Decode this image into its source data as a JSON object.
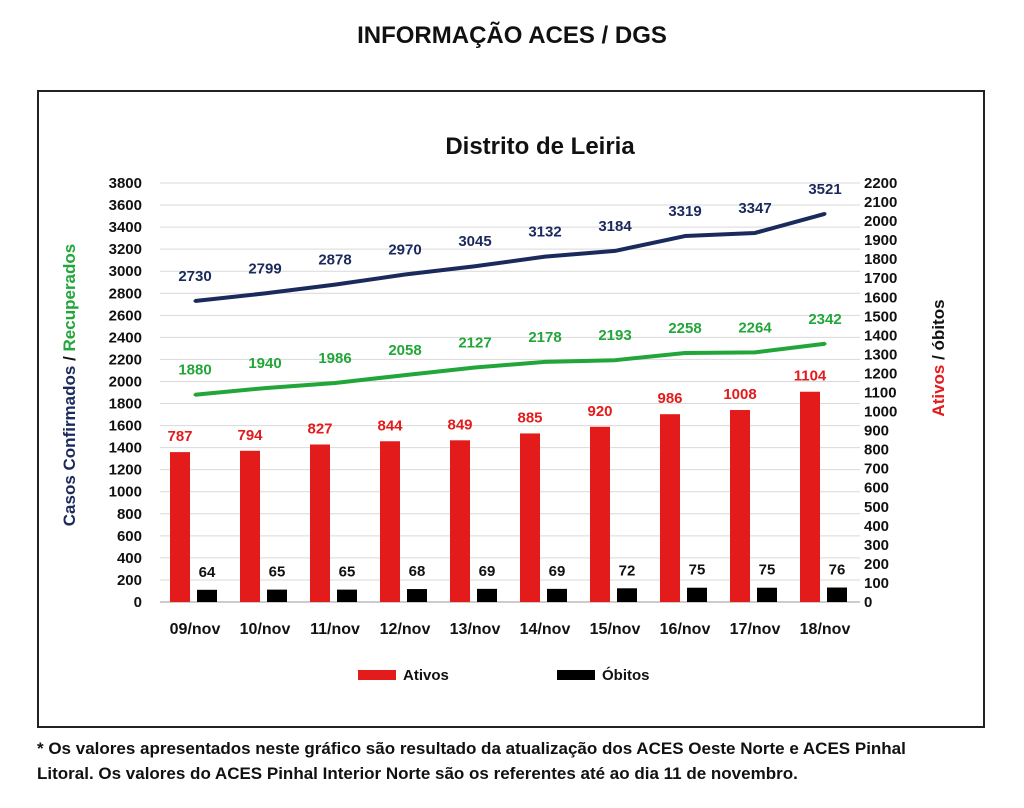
{
  "page": {
    "title": "INFORMAÇÃO ACES / DGS",
    "footnote_line1": "* Os valores apresentados neste gráfico são resultado da atualização dos ACES Oeste Norte e ACES Pinhal",
    "footnote_line2": "Litoral. Os valores do ACES Pinhal Interior Norte são os referentes até ao dia 11 de novembro."
  },
  "colors": {
    "confirmados": "#1b2a5c",
    "recuperados": "#22a63a",
    "ativos": "#e31b1b",
    "obitos": "#000000",
    "grid": "#d9d9d9"
  },
  "chart_data": {
    "type": "bar",
    "title": "Distrito de Leiria",
    "categories": [
      "09/nov",
      "10/nov",
      "11/nov",
      "12/nov",
      "13/nov",
      "14/nov",
      "15/nov",
      "16/nov",
      "17/nov",
      "18/nov"
    ],
    "ylabel_left_part1": "Casos Confirmados",
    "ylabel_left_sep": " / ",
    "ylabel_left_part2": "Recuperados",
    "ylabel_right_part1": "Ativos",
    "ylabel_right_sep": " / ",
    "ylabel_right_part2": "óbitos",
    "ylim_left": [
      0,
      3800
    ],
    "ylim_right": [
      0,
      2200
    ],
    "yticks_left": [
      0,
      200,
      400,
      600,
      800,
      1000,
      1200,
      1400,
      1600,
      1800,
      2000,
      2200,
      2400,
      2600,
      2800,
      3000,
      3200,
      3400,
      3600,
      3800
    ],
    "yticks_right": [
      0,
      100,
      200,
      300,
      400,
      500,
      600,
      700,
      800,
      900,
      1000,
      1100,
      1200,
      1300,
      1400,
      1500,
      1600,
      1700,
      1800,
      1900,
      2000,
      2100,
      2200
    ],
    "grid": true,
    "legend_position": "bottom",
    "series": [
      {
        "name": "",
        "kind": "line",
        "axis": "left",
        "color_key": "confirmados",
        "values": [
          2730,
          2799,
          2878,
          2970,
          3045,
          3132,
          3184,
          3319,
          3347,
          3521
        ]
      },
      {
        "name": "",
        "kind": "line",
        "axis": "left",
        "color_key": "recuperados",
        "values": [
          1880,
          1940,
          1986,
          2058,
          2127,
          2178,
          2193,
          2258,
          2264,
          2342
        ]
      },
      {
        "name": "Ativos",
        "kind": "bar",
        "axis": "right",
        "color_key": "ativos",
        "values": [
          787,
          794,
          827,
          844,
          849,
          885,
          920,
          986,
          1008,
          1104
        ]
      },
      {
        "name": "Óbitos",
        "kind": "bar",
        "axis": "right",
        "color_key": "obitos",
        "values": [
          64,
          65,
          65,
          68,
          69,
          69,
          72,
          75,
          75,
          76
        ]
      }
    ]
  }
}
